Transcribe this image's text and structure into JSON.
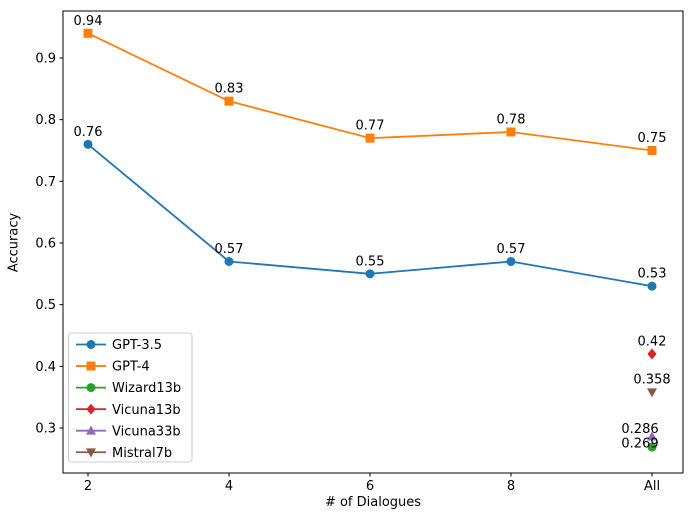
{
  "chart_data": {
    "type": "line",
    "title": "",
    "xlabel": "# of Dialogues",
    "ylabel": "Accuracy",
    "categories": [
      "2",
      "4",
      "6",
      "8",
      "All"
    ],
    "y_ticks": [
      0.3,
      0.4,
      0.5,
      0.6,
      0.7,
      0.8,
      0.9
    ],
    "ylim": [
      0.227,
      0.978
    ],
    "grid": false,
    "legend_position": "lower left",
    "axis_color": "#000000",
    "legend_border_color": "#cccccc",
    "series": [
      {
        "name": "GPT-3.5",
        "marker": "circle",
        "color": "#1f77b4",
        "values": [
          0.76,
          0.57,
          0.55,
          0.57,
          0.53
        ],
        "labels": [
          "0.76",
          "0.57",
          "0.55",
          "0.57",
          "0.53"
        ]
      },
      {
        "name": "GPT-4",
        "marker": "square",
        "color": "#ff7f0e",
        "values": [
          0.94,
          0.83,
          0.77,
          0.78,
          0.75
        ],
        "labels": [
          "0.94",
          "0.83",
          "0.77",
          "0.78",
          "0.75"
        ]
      }
    ],
    "points": [
      {
        "name": "Wizard13b",
        "marker": "circle",
        "color": "#2ca02c",
        "category": "All",
        "value": 0.269,
        "label": "0.269",
        "label_offset": [
          -12,
          -4
        ]
      },
      {
        "name": "Vicuna13b",
        "marker": "diamond",
        "color": "#d62728",
        "category": "All",
        "value": 0.42,
        "label": "0.42",
        "label_offset": [
          0,
          -13
        ]
      },
      {
        "name": "Vicuna33b",
        "marker": "triangle-up",
        "color": "#9467bd",
        "category": "All",
        "value": 0.286,
        "label": "0.286",
        "label_offset": [
          -12,
          -8
        ]
      },
      {
        "name": "Mistral7b",
        "marker": "triangle-down",
        "color": "#8c564b",
        "category": "All",
        "value": 0.358,
        "label": "0.358",
        "label_offset": [
          0,
          -13
        ]
      }
    ],
    "legend_entries": [
      "GPT-3.5",
      "GPT-4",
      "Wizard13b",
      "Vicuna13b",
      "Vicuna33b",
      "Mistral7b"
    ]
  }
}
